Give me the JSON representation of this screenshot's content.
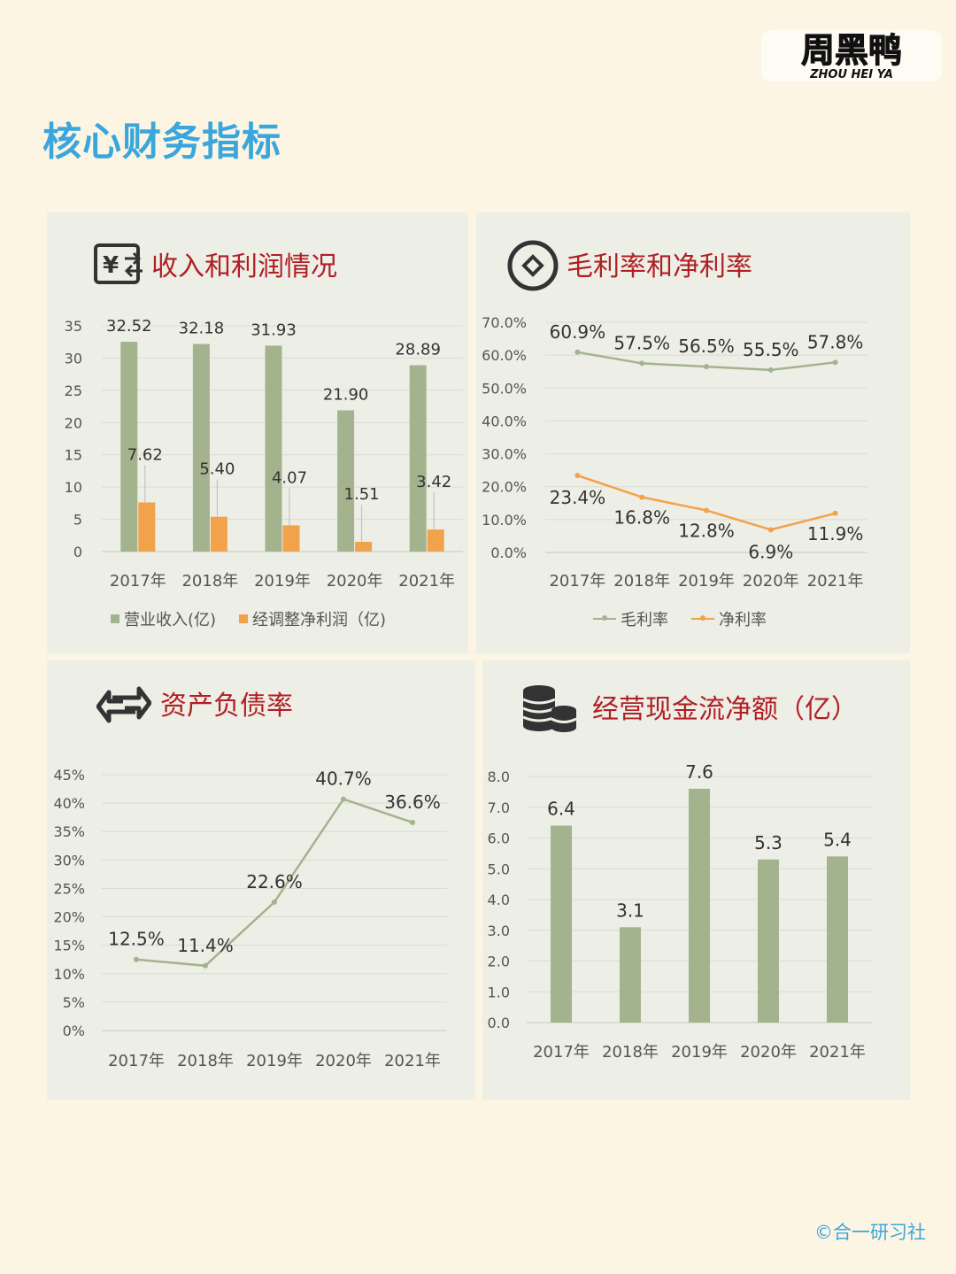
{
  "brand": {
    "logo_cn": "周黑鸭",
    "logo_en": "ZHOU HEI YA"
  },
  "page_title": "核心财务指标",
  "credit": "©合一研习社",
  "panels": {
    "revenue": {
      "title": "收入和利润情况",
      "icon": "yen-exchange-icon"
    },
    "margin": {
      "title": "毛利率和净利率",
      "icon": "coin-icon"
    },
    "debt": {
      "title": "资产负债率",
      "icon": "arrows-exchange-icon"
    },
    "cashflow": {
      "title": "经营现金流净额（亿）",
      "icon": "coin-stack-icon"
    }
  },
  "colors": {
    "green": "#a3b38e",
    "orange": "#f2a24a",
    "title_red": "#b01f24",
    "title_blue": "#3aa6dc"
  },
  "chart_data": [
    {
      "id": "revenue",
      "type": "bar",
      "categories": [
        "2017年",
        "2018年",
        "2019年",
        "2020年",
        "2021年"
      ],
      "series": [
        {
          "name": "营业收入(亿)",
          "values": [
            32.52,
            32.18,
            31.93,
            21.9,
            28.89
          ],
          "labels": [
            "32.52",
            "32.18",
            "31.93",
            "21.90",
            "28.89"
          ],
          "color": "#a3b38e"
        },
        {
          "name": "经调整净利润（亿)",
          "values": [
            7.62,
            5.4,
            4.07,
            1.51,
            3.42
          ],
          "labels": [
            "7.62",
            "5.40",
            "4.07",
            "1.51",
            "3.42"
          ],
          "color": "#f2a24a"
        }
      ],
      "ylim": [
        0,
        35
      ],
      "yticks": [
        "0",
        "5",
        "10",
        "15",
        "20",
        "25",
        "30",
        "35"
      ],
      "grid": true,
      "legend": "bottom"
    },
    {
      "id": "margin",
      "type": "line",
      "categories": [
        "2017年",
        "2018年",
        "2019年",
        "2020年",
        "2021年"
      ],
      "series": [
        {
          "name": "毛利率",
          "values": [
            60.9,
            57.5,
            56.5,
            55.5,
            57.8
          ],
          "labels": [
            "60.9%",
            "57.5%",
            "56.5%",
            "55.5%",
            "57.8%"
          ],
          "color": "#a3b38e"
        },
        {
          "name": "净利率",
          "values": [
            23.4,
            16.8,
            12.8,
            6.9,
            11.9
          ],
          "labels": [
            "23.4%",
            "16.8%",
            "12.8%",
            "6.9%",
            "11.9%"
          ],
          "color": "#f2a24a"
        }
      ],
      "ylim": [
        0,
        70
      ],
      "yticks": [
        "0.0%",
        "10.0%",
        "20.0%",
        "30.0%",
        "40.0%",
        "50.0%",
        "60.0%",
        "70.0%"
      ],
      "grid": true,
      "legend": "bottom"
    },
    {
      "id": "debt",
      "type": "line",
      "categories": [
        "2017年",
        "2018年",
        "2019年",
        "2020年",
        "2021年"
      ],
      "series": [
        {
          "name": "资产负债率",
          "values": [
            12.5,
            11.4,
            22.6,
            40.7,
            36.6
          ],
          "labels": [
            "12.5%",
            "11.4%",
            "22.6%",
            "40.7%",
            "36.6%"
          ],
          "color": "#a3b38e"
        }
      ],
      "ylim": [
        0,
        45
      ],
      "yticks": [
        "0%",
        "5%",
        "10%",
        "15%",
        "20%",
        "25%",
        "30%",
        "35%",
        "40%",
        "45%"
      ],
      "grid": true,
      "legend": "none"
    },
    {
      "id": "cashflow",
      "type": "bar",
      "categories": [
        "2017年",
        "2018年",
        "2019年",
        "2020年",
        "2021年"
      ],
      "series": [
        {
          "name": "经营现金流净额",
          "values": [
            6.4,
            3.1,
            7.6,
            5.3,
            5.4
          ],
          "labels": [
            "6.4",
            "3.1",
            "7.6",
            "5.3",
            "5.4"
          ],
          "color": "#a3b38e"
        }
      ],
      "ylim": [
        0,
        8
      ],
      "yticks": [
        "0.0",
        "1.0",
        "2.0",
        "3.0",
        "4.0",
        "5.0",
        "6.0",
        "7.0",
        "8.0"
      ],
      "grid": true,
      "legend": "none"
    }
  ]
}
